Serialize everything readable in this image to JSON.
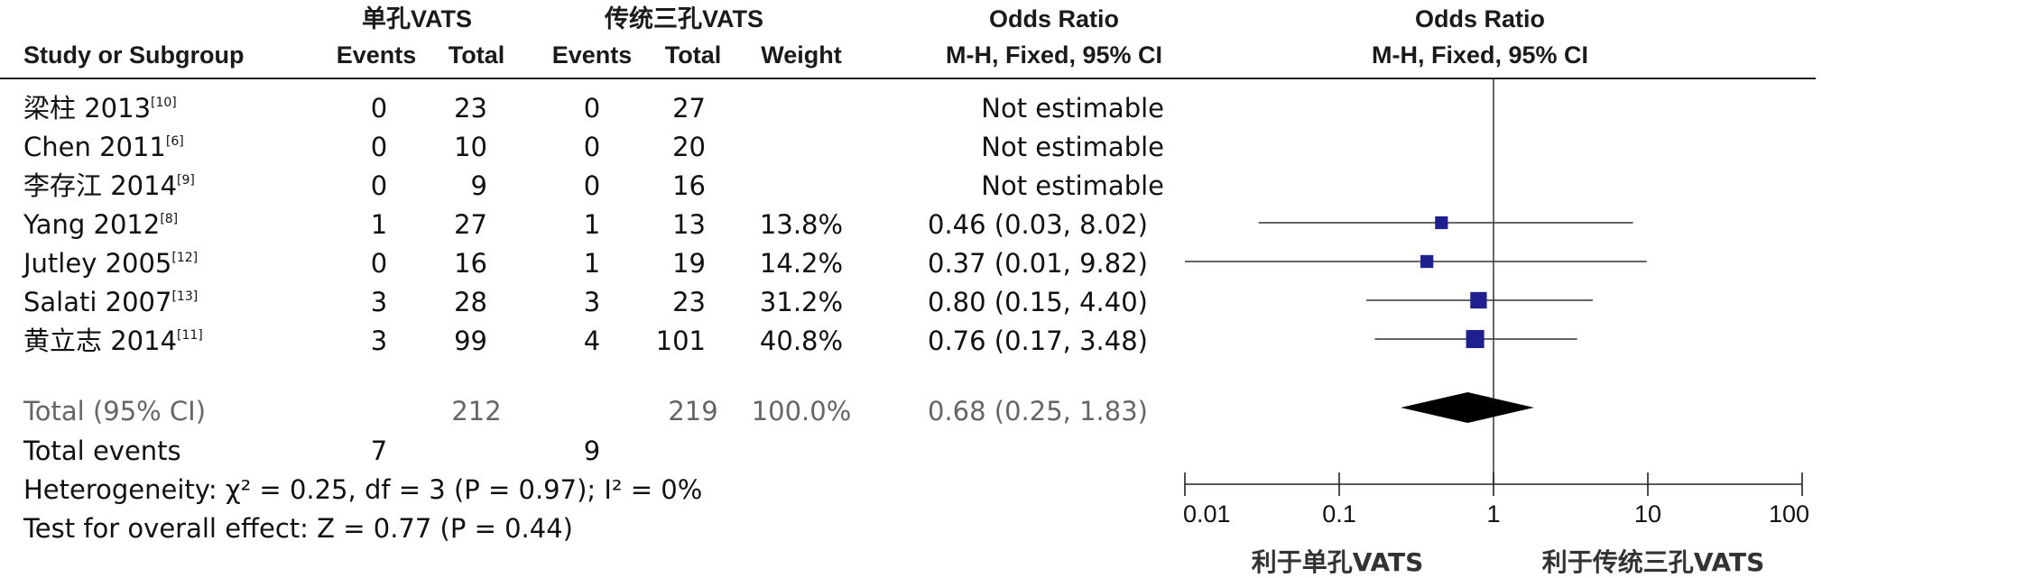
{
  "header": {
    "group1": "单孔VATS",
    "group2": "传统三孔VATS",
    "or_title_table": "Odds Ratio",
    "or_sub_table": "M-H, Fixed, 95% CI",
    "or_title_plot": "Odds Ratio",
    "or_sub_plot": "M-H, Fixed, 95% CI",
    "study": "Study or Subgroup",
    "events1": "Events",
    "total1": "Total",
    "events2": "Events",
    "total2": "Total",
    "weight": "Weight"
  },
  "studies": [
    {
      "name": "梁柱 2013",
      "ref": "[10]",
      "e1": "0",
      "t1": "23",
      "e2": "0",
      "t2": "27",
      "weight": "",
      "ci_text": "Not estimable",
      "or": null,
      "lo": null,
      "hi": null,
      "w": null
    },
    {
      "name": "Chen 2011",
      "ref": "[6]",
      "e1": "0",
      "t1": "10",
      "e2": "0",
      "t2": "20",
      "weight": "",
      "ci_text": "Not estimable",
      "or": null,
      "lo": null,
      "hi": null,
      "w": null
    },
    {
      "name": "李存江 2014",
      "ref": "[9]",
      "e1": "0",
      "t1": "9",
      "e2": "0",
      "t2": "16",
      "weight": "",
      "ci_text": "Not estimable",
      "or": null,
      "lo": null,
      "hi": null,
      "w": null
    },
    {
      "name": "Yang 2012",
      "ref": "[8]",
      "e1": "1",
      "t1": "27",
      "e2": "1",
      "t2": "13",
      "weight": "13.8%",
      "ci_text": "0.46 (0.03, 8.02)",
      "or": 0.46,
      "lo": 0.03,
      "hi": 8.02,
      "w": 13.8
    },
    {
      "name": "Jutley 2005",
      "ref": "[12]",
      "e1": "0",
      "t1": "16",
      "e2": "1",
      "t2": "19",
      "weight": "14.2%",
      "ci_text": "0.37 (0.01, 9.82)",
      "or": 0.37,
      "lo": 0.01,
      "hi": 9.82,
      "w": 14.2
    },
    {
      "name": "Salati 2007",
      "ref": "[13]",
      "e1": "3",
      "t1": "28",
      "e2": "3",
      "t2": "23",
      "weight": "31.2%",
      "ci_text": "0.80 (0.15, 4.40)",
      "or": 0.8,
      "lo": 0.15,
      "hi": 4.4,
      "w": 31.2
    },
    {
      "name": "黄立志 2014",
      "ref": "[11]",
      "e1": "3",
      "t1": "99",
      "e2": "4",
      "t2": "101",
      "weight": "40.8%",
      "ci_text": "0.76 (0.17, 3.48)",
      "or": 0.76,
      "lo": 0.17,
      "hi": 3.48,
      "w": 40.8
    }
  ],
  "total": {
    "label": "Total (95% CI)",
    "t1": "212",
    "t2": "219",
    "weight": "100.0%",
    "ci_text": "0.68 (0.25, 1.83)",
    "or": 0.68,
    "lo": 0.25,
    "hi": 1.83
  },
  "events": {
    "label": "Total events",
    "e1": "7",
    "e2": "9"
  },
  "heterogeneity": "Heterogeneity: χ² = 0.25, df = 3 (P = 0.97); I² = 0%",
  "overall": "Test for overall effect: Z = 0.77 (P = 0.44)",
  "favours": {
    "left": "利于单孔VATS",
    "right": "利于传统三孔VATS"
  },
  "chart_data": {
    "type": "forest",
    "xscale": "log",
    "xlim": [
      0.01,
      100
    ],
    "xticks": [
      "0.01",
      "0.1",
      "1",
      "10",
      "100"
    ],
    "xtick_values": [
      0.01,
      0.1,
      1,
      10,
      100
    ],
    "reference_line": 1,
    "colors": {
      "study_marker": "#1f1f8f",
      "summary": "#000000",
      "lines": "#333333"
    }
  }
}
